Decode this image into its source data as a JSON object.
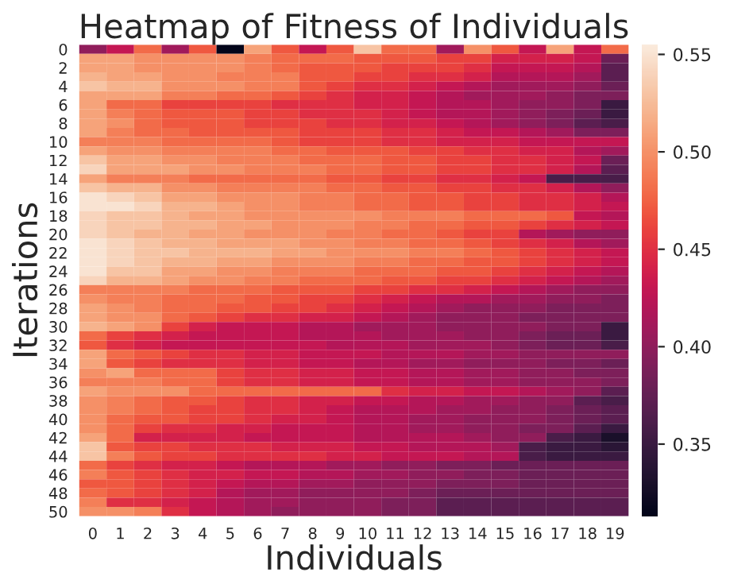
{
  "chart_data": {
    "type": "heatmap",
    "title": "Heatmap of Fitness of Individuals",
    "xlabel": "Individuals",
    "ylabel": "Iterations",
    "categories": [
      "0",
      "1",
      "2",
      "3",
      "4",
      "5",
      "6",
      "7",
      "8",
      "9",
      "10",
      "11",
      "12",
      "13",
      "14",
      "15",
      "16",
      "17",
      "18",
      "19"
    ],
    "y_categories": [
      "0",
      null,
      "2",
      null,
      "4",
      null,
      "6",
      null,
      "8",
      null,
      "10",
      null,
      "12",
      null,
      "14",
      null,
      "16",
      null,
      "18",
      null,
      "20",
      null,
      "22",
      null,
      "24",
      null,
      "26",
      null,
      "28",
      null,
      "30",
      null,
      "32",
      null,
      "34",
      null,
      "36",
      null,
      "38",
      null,
      "40",
      null,
      "42",
      null,
      "44",
      null,
      "46",
      null,
      "48",
      null,
      "50"
    ],
    "clim": [
      0.313,
      0.555
    ],
    "cticks": [
      0.35,
      {
        "value": 0.4,
        "label": "0.40"
      },
      0.45,
      {
        "value": 0.5,
        "label": "0.50"
      },
      0.55
    ],
    "cells": [
      [
        0.4,
        0.43,
        0.48,
        0.41,
        0.47,
        0.31,
        0.51,
        0.47,
        0.43,
        0.47,
        0.53,
        0.48,
        0.48,
        0.41,
        0.5,
        0.47,
        0.43,
        0.51,
        0.43,
        0.48
      ],
      [
        0.51,
        0.51,
        0.5,
        0.5,
        0.5,
        0.5,
        0.49,
        0.48,
        0.48,
        0.48,
        0.47,
        0.47,
        0.47,
        0.46,
        0.46,
        0.44,
        0.44,
        0.44,
        0.43,
        0.38
      ],
      [
        0.51,
        0.51,
        0.5,
        0.5,
        0.5,
        0.5,
        0.49,
        0.48,
        0.47,
        0.47,
        0.47,
        0.46,
        0.46,
        0.46,
        0.45,
        0.43,
        0.43,
        0.43,
        0.42,
        0.37
      ],
      [
        0.52,
        0.51,
        0.51,
        0.5,
        0.5,
        0.49,
        0.49,
        0.49,
        0.47,
        0.47,
        0.46,
        0.46,
        0.45,
        0.45,
        0.44,
        0.42,
        0.42,
        0.42,
        0.41,
        0.37
      ],
      [
        0.53,
        0.52,
        0.52,
        0.5,
        0.5,
        0.5,
        0.49,
        0.49,
        0.47,
        0.46,
        0.45,
        0.45,
        0.44,
        0.43,
        0.42,
        0.41,
        0.41,
        0.41,
        0.4,
        0.38
      ],
      [
        0.51,
        0.51,
        0.51,
        0.49,
        0.49,
        0.48,
        0.48,
        0.47,
        0.46,
        0.45,
        0.44,
        0.44,
        0.43,
        0.42,
        0.41,
        0.41,
        0.41,
        0.4,
        0.39,
        0.39
      ],
      [
        0.51,
        0.48,
        0.48,
        0.46,
        0.46,
        0.46,
        0.46,
        0.45,
        0.45,
        0.45,
        0.44,
        0.44,
        0.43,
        0.42,
        0.42,
        0.41,
        0.4,
        0.4,
        0.39,
        0.35
      ],
      [
        0.51,
        0.49,
        0.48,
        0.47,
        0.47,
        0.47,
        0.46,
        0.46,
        0.45,
        0.45,
        0.45,
        0.44,
        0.43,
        0.42,
        0.42,
        0.41,
        0.4,
        0.39,
        0.38,
        0.35
      ],
      [
        0.51,
        0.5,
        0.48,
        0.47,
        0.47,
        0.47,
        0.46,
        0.46,
        0.46,
        0.45,
        0.45,
        0.44,
        0.44,
        0.43,
        0.42,
        0.41,
        0.4,
        0.39,
        0.37,
        0.36
      ],
      [
        0.51,
        0.49,
        0.48,
        0.48,
        0.47,
        0.47,
        0.47,
        0.47,
        0.46,
        0.46,
        0.46,
        0.45,
        0.45,
        0.44,
        0.43,
        0.43,
        0.42,
        0.41,
        0.39,
        0.39
      ],
      [
        0.49,
        0.49,
        0.49,
        0.48,
        0.48,
        0.48,
        0.48,
        0.47,
        0.46,
        0.46,
        0.46,
        0.45,
        0.45,
        0.44,
        0.44,
        0.44,
        0.43,
        0.43,
        0.43,
        0.43
      ],
      [
        0.51,
        0.5,
        0.5,
        0.49,
        0.49,
        0.49,
        0.49,
        0.48,
        0.48,
        0.47,
        0.47,
        0.47,
        0.46,
        0.46,
        0.45,
        0.45,
        0.44,
        0.44,
        0.42,
        0.41
      ],
      [
        0.53,
        0.51,
        0.51,
        0.5,
        0.5,
        0.49,
        0.49,
        0.49,
        0.48,
        0.48,
        0.48,
        0.47,
        0.47,
        0.46,
        0.46,
        0.45,
        0.45,
        0.44,
        0.43,
        0.38
      ],
      [
        0.54,
        0.51,
        0.51,
        0.51,
        0.5,
        0.5,
        0.49,
        0.49,
        0.49,
        0.48,
        0.48,
        0.47,
        0.47,
        0.46,
        0.46,
        0.45,
        0.45,
        0.44,
        0.42,
        0.37
      ],
      [
        0.51,
        0.49,
        0.49,
        0.49,
        0.48,
        0.48,
        0.48,
        0.48,
        0.48,
        0.47,
        0.47,
        0.46,
        0.46,
        0.45,
        0.45,
        0.44,
        0.43,
        0.36,
        0.36,
        0.36
      ],
      [
        0.53,
        0.52,
        0.52,
        0.5,
        0.5,
        0.49,
        0.49,
        0.49,
        0.49,
        0.48,
        0.48,
        0.47,
        0.47,
        0.46,
        0.46,
        0.45,
        0.45,
        0.44,
        0.42,
        0.4
      ],
      [
        0.55,
        0.54,
        0.53,
        0.51,
        0.51,
        0.5,
        0.5,
        0.5,
        0.49,
        0.49,
        0.48,
        0.48,
        0.47,
        0.47,
        0.46,
        0.46,
        0.45,
        0.45,
        0.44,
        0.42
      ],
      [
        0.55,
        0.55,
        0.54,
        0.52,
        0.52,
        0.51,
        0.5,
        0.5,
        0.49,
        0.49,
        0.48,
        0.48,
        0.47,
        0.47,
        0.46,
        0.46,
        0.45,
        0.45,
        0.44,
        0.43
      ],
      [
        0.54,
        0.53,
        0.53,
        0.52,
        0.51,
        0.51,
        0.5,
        0.5,
        0.5,
        0.5,
        0.5,
        0.49,
        0.49,
        0.49,
        0.48,
        0.48,
        0.48,
        0.47,
        0.43,
        0.42
      ],
      [
        0.54,
        0.53,
        0.53,
        0.52,
        0.52,
        0.51,
        0.51,
        0.5,
        0.5,
        0.5,
        0.49,
        0.49,
        0.48,
        0.48,
        0.47,
        0.47,
        0.46,
        0.45,
        0.44,
        0.43
      ],
      [
        0.54,
        0.53,
        0.52,
        0.52,
        0.51,
        0.51,
        0.5,
        0.5,
        0.5,
        0.49,
        0.49,
        0.48,
        0.48,
        0.47,
        0.46,
        0.46,
        0.42,
        0.41,
        0.4,
        0.4
      ],
      [
        0.55,
        0.54,
        0.53,
        0.52,
        0.52,
        0.51,
        0.51,
        0.51,
        0.5,
        0.5,
        0.49,
        0.49,
        0.48,
        0.48,
        0.47,
        0.46,
        0.45,
        0.44,
        0.42,
        0.41
      ],
      [
        0.55,
        0.54,
        0.53,
        0.53,
        0.52,
        0.52,
        0.52,
        0.51,
        0.51,
        0.5,
        0.5,
        0.5,
        0.49,
        0.49,
        0.48,
        0.47,
        0.46,
        0.45,
        0.44,
        0.43
      ],
      [
        0.55,
        0.54,
        0.53,
        0.52,
        0.52,
        0.51,
        0.51,
        0.5,
        0.5,
        0.5,
        0.49,
        0.49,
        0.48,
        0.48,
        0.47,
        0.47,
        0.46,
        0.45,
        0.44,
        0.43
      ],
      [
        0.55,
        0.53,
        0.53,
        0.51,
        0.51,
        0.5,
        0.5,
        0.49,
        0.49,
        0.49,
        0.48,
        0.48,
        0.48,
        0.47,
        0.47,
        0.46,
        0.45,
        0.44,
        0.43,
        0.42
      ],
      [
        0.54,
        0.52,
        0.52,
        0.51,
        0.5,
        0.5,
        0.49,
        0.49,
        0.48,
        0.48,
        0.48,
        0.47,
        0.47,
        0.46,
        0.46,
        0.45,
        0.44,
        0.43,
        0.42,
        0.41
      ],
      [
        0.49,
        0.49,
        0.49,
        0.49,
        0.48,
        0.48,
        0.48,
        0.47,
        0.47,
        0.47,
        0.46,
        0.46,
        0.45,
        0.45,
        0.44,
        0.43,
        0.42,
        0.41,
        0.4,
        0.4
      ],
      [
        0.5,
        0.49,
        0.49,
        0.48,
        0.48,
        0.48,
        0.47,
        0.47,
        0.46,
        0.46,
        0.45,
        0.44,
        0.43,
        0.42,
        0.42,
        0.41,
        0.41,
        0.4,
        0.4,
        0.39
      ],
      [
        0.51,
        0.5,
        0.49,
        0.48,
        0.48,
        0.47,
        0.47,
        0.46,
        0.46,
        0.45,
        0.44,
        0.43,
        0.42,
        0.41,
        0.4,
        0.4,
        0.4,
        0.39,
        0.39,
        0.39
      ],
      [
        0.51,
        0.5,
        0.5,
        0.48,
        0.47,
        0.46,
        0.45,
        0.45,
        0.44,
        0.44,
        0.43,
        0.42,
        0.41,
        0.4,
        0.4,
        0.4,
        0.39,
        0.39,
        0.39,
        0.39
      ],
      [
        0.52,
        0.51,
        0.5,
        0.46,
        0.44,
        0.43,
        0.43,
        0.43,
        0.42,
        0.42,
        0.41,
        0.41,
        0.41,
        0.4,
        0.4,
        0.4,
        0.4,
        0.39,
        0.39,
        0.35
      ],
      [
        0.48,
        0.46,
        0.45,
        0.44,
        0.43,
        0.43,
        0.43,
        0.43,
        0.42,
        0.42,
        0.42,
        0.41,
        0.41,
        0.41,
        0.4,
        0.4,
        0.39,
        0.38,
        0.38,
        0.35
      ],
      [
        0.47,
        0.45,
        0.44,
        0.43,
        0.43,
        0.43,
        0.43,
        0.43,
        0.43,
        0.42,
        0.42,
        0.42,
        0.41,
        0.41,
        0.41,
        0.4,
        0.39,
        0.38,
        0.38,
        0.36
      ],
      [
        0.51,
        0.48,
        0.47,
        0.46,
        0.45,
        0.45,
        0.44,
        0.44,
        0.43,
        0.43,
        0.43,
        0.42,
        0.42,
        0.42,
        0.41,
        0.41,
        0.4,
        0.4,
        0.4,
        0.4
      ],
      [
        0.51,
        0.47,
        0.46,
        0.45,
        0.45,
        0.45,
        0.44,
        0.44,
        0.43,
        0.43,
        0.42,
        0.42,
        0.41,
        0.41,
        0.4,
        0.4,
        0.4,
        0.39,
        0.39,
        0.38
      ],
      [
        0.5,
        0.51,
        0.48,
        0.48,
        0.48,
        0.46,
        0.45,
        0.45,
        0.44,
        0.44,
        0.43,
        0.43,
        0.42,
        0.42,
        0.41,
        0.41,
        0.4,
        0.4,
        0.39,
        0.39
      ],
      [
        0.49,
        0.49,
        0.49,
        0.48,
        0.48,
        0.46,
        0.45,
        0.45,
        0.44,
        0.44,
        0.43,
        0.43,
        0.42,
        0.42,
        0.41,
        0.41,
        0.4,
        0.4,
        0.4,
        0.39
      ],
      [
        0.51,
        0.5,
        0.5,
        0.5,
        0.48,
        0.48,
        0.48,
        0.48,
        0.48,
        0.48,
        0.48,
        0.45,
        0.44,
        0.44,
        0.43,
        0.43,
        0.42,
        0.41,
        0.4,
        0.37
      ],
      [
        0.5,
        0.49,
        0.48,
        0.47,
        0.47,
        0.46,
        0.45,
        0.45,
        0.44,
        0.44,
        0.43,
        0.43,
        0.42,
        0.42,
        0.41,
        0.41,
        0.4,
        0.4,
        0.37,
        0.36
      ],
      [
        0.5,
        0.49,
        0.48,
        0.47,
        0.46,
        0.46,
        0.45,
        0.45,
        0.44,
        0.43,
        0.42,
        0.42,
        0.42,
        0.41,
        0.41,
        0.4,
        0.4,
        0.39,
        0.38,
        0.37
      ],
      [
        0.5,
        0.48,
        0.47,
        0.47,
        0.46,
        0.46,
        0.45,
        0.44,
        0.44,
        0.43,
        0.42,
        0.42,
        0.41,
        0.41,
        0.4,
        0.4,
        0.4,
        0.39,
        0.38,
        0.37
      ],
      [
        0.5,
        0.48,
        0.46,
        0.45,
        0.45,
        0.44,
        0.44,
        0.43,
        0.43,
        0.43,
        0.42,
        0.42,
        0.41,
        0.41,
        0.4,
        0.4,
        0.39,
        0.39,
        0.37,
        0.35
      ],
      [
        0.51,
        0.48,
        0.44,
        0.44,
        0.44,
        0.44,
        0.43,
        0.43,
        0.43,
        0.43,
        0.42,
        0.42,
        0.42,
        0.42,
        0.41,
        0.4,
        0.4,
        0.36,
        0.35,
        0.33
      ],
      [
        0.53,
        0.47,
        0.46,
        0.46,
        0.45,
        0.45,
        0.45,
        0.44,
        0.44,
        0.44,
        0.43,
        0.43,
        0.42,
        0.42,
        0.42,
        0.41,
        0.36,
        0.35,
        0.35,
        0.34
      ],
      [
        0.53,
        0.49,
        0.47,
        0.46,
        0.46,
        0.45,
        0.45,
        0.45,
        0.45,
        0.44,
        0.44,
        0.43,
        0.43,
        0.43,
        0.42,
        0.42,
        0.36,
        0.35,
        0.35,
        0.35
      ],
      [
        0.48,
        0.46,
        0.45,
        0.44,
        0.44,
        0.43,
        0.42,
        0.42,
        0.42,
        0.41,
        0.41,
        0.4,
        0.4,
        0.39,
        0.39,
        0.38,
        0.38,
        0.38,
        0.38,
        0.38
      ],
      [
        0.49,
        0.47,
        0.46,
        0.45,
        0.44,
        0.44,
        0.43,
        0.43,
        0.42,
        0.42,
        0.41,
        0.41,
        0.4,
        0.4,
        0.39,
        0.39,
        0.38,
        0.38,
        0.38,
        0.38
      ],
      [
        0.47,
        0.47,
        0.46,
        0.45,
        0.44,
        0.43,
        0.42,
        0.42,
        0.41,
        0.41,
        0.4,
        0.4,
        0.4,
        0.39,
        0.39,
        0.39,
        0.38,
        0.38,
        0.38,
        0.38
      ],
      [
        0.48,
        0.47,
        0.46,
        0.45,
        0.44,
        0.42,
        0.41,
        0.41,
        0.4,
        0.4,
        0.4,
        0.4,
        0.39,
        0.38,
        0.38,
        0.38,
        0.38,
        0.38,
        0.38,
        0.38
      ],
      [
        0.49,
        0.45,
        0.45,
        0.44,
        0.43,
        0.42,
        0.41,
        0.41,
        0.4,
        0.4,
        0.4,
        0.39,
        0.39,
        0.37,
        0.37,
        0.37,
        0.37,
        0.37,
        0.37,
        0.37
      ],
      [
        0.5,
        0.5,
        0.49,
        0.45,
        0.43,
        0.42,
        0.41,
        0.4,
        0.4,
        0.4,
        0.4,
        0.39,
        0.39,
        0.37,
        0.37,
        0.37,
        0.37,
        0.37,
        0.37,
        0.37
      ]
    ]
  }
}
